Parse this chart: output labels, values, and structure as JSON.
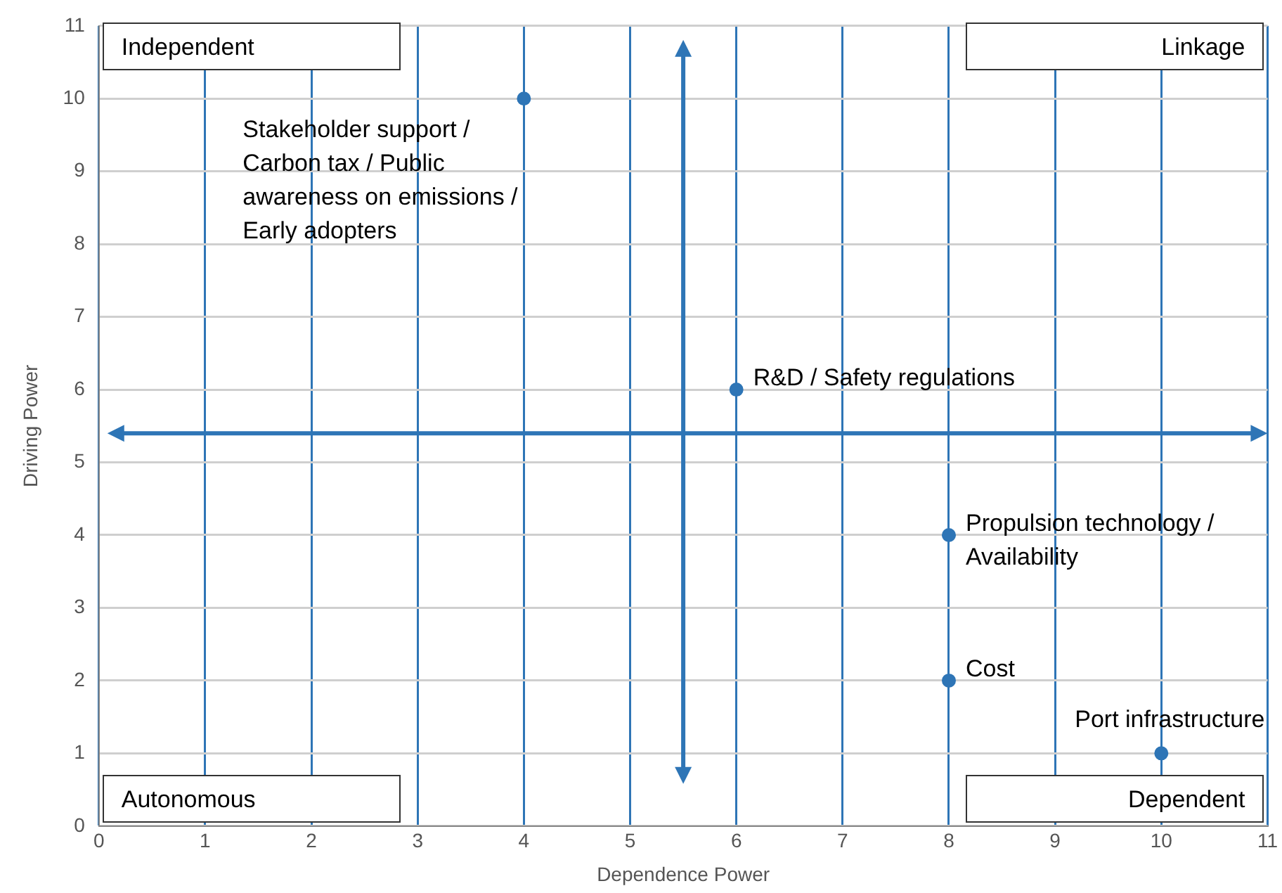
{
  "chart_data": {
    "type": "scatter",
    "xlabel": "Dependence Power",
    "ylabel": "Driving Power",
    "x": [
      4,
      6,
      8,
      8,
      10
    ],
    "values": [
      10,
      6,
      4,
      2,
      1
    ],
    "color": "#2e75b6",
    "marker": "circle",
    "xlim": [
      0,
      11
    ],
    "ylim": [
      0,
      11
    ],
    "xticks": [
      0,
      1,
      2,
      3,
      4,
      5,
      6,
      7,
      8,
      9,
      10,
      11
    ],
    "yticks": [
      0,
      1,
      2,
      3,
      4,
      5,
      6,
      7,
      8,
      9,
      10,
      11
    ],
    "grid": true,
    "legend": false,
    "ref_lines": [
      {
        "axis": "x",
        "value": 5.5,
        "color": "#2e75b6"
      },
      {
        "axis": "y",
        "value": 5.4,
        "color": "#2e75b6"
      }
    ],
    "annotations": [
      "Independent",
      "Linkage",
      "Autonomous",
      "Dependent",
      {
        "text": "Stakeholder support / Carbon tax / Public awareness on emissions / Early adopters",
        "x": 4,
        "y": 10
      },
      {
        "text": "R&D / Safety regulations",
        "x": 6,
        "y": 6
      },
      {
        "text": "Propulsion technology / Availability",
        "x": 8,
        "y": 4
      },
      {
        "text": "Cost",
        "x": 8,
        "y": 2
      },
      {
        "text": "Port infrastructure",
        "x": 10,
        "y": 1
      }
    ]
  }
}
